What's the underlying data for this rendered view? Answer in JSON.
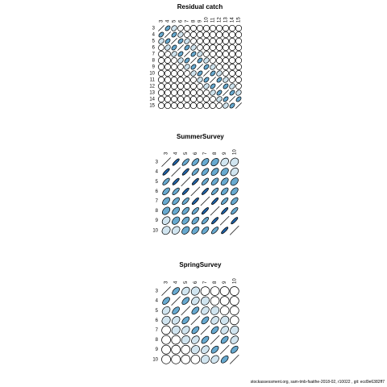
{
  "footer": "stockassessment.org, sam-tmb-fsaithe-2018-02, r10022 , git: ecd9e6382ff7",
  "colors": {
    "strong": "#2166ac",
    "medium": "#67a9cf",
    "light": "#d1e5f0",
    "weak": "#ffffff",
    "border": "#000000"
  },
  "chart_data": [
    {
      "type": "heatmap",
      "title": "Residual catch",
      "ages": [
        "3",
        "4",
        "5",
        "6",
        "7",
        "8",
        "9",
        "10",
        "11",
        "12",
        "13",
        "14",
        "15"
      ],
      "correlation": [
        [
          1.0,
          0.45,
          0.25,
          0.1,
          0.05,
          0.02,
          0.0,
          0.0,
          0.0,
          0.0,
          0.0,
          0.0,
          0.0
        ],
        [
          0.45,
          1.0,
          0.45,
          0.25,
          0.1,
          0.05,
          0.02,
          0.0,
          0.0,
          0.0,
          0.0,
          0.0,
          0.0
        ],
        [
          0.25,
          0.45,
          1.0,
          0.45,
          0.25,
          0.1,
          0.05,
          0.02,
          0.0,
          0.0,
          0.0,
          0.0,
          0.0
        ],
        [
          0.1,
          0.25,
          0.45,
          1.0,
          0.45,
          0.25,
          0.1,
          0.05,
          0.02,
          0.0,
          0.0,
          0.0,
          0.0
        ],
        [
          0.05,
          0.1,
          0.25,
          0.45,
          1.0,
          0.45,
          0.25,
          0.1,
          0.05,
          0.02,
          0.0,
          0.0,
          0.0
        ],
        [
          0.02,
          0.05,
          0.1,
          0.25,
          0.45,
          1.0,
          0.45,
          0.25,
          0.1,
          0.05,
          0.02,
          0.0,
          0.0
        ],
        [
          0.0,
          0.02,
          0.05,
          0.1,
          0.25,
          0.45,
          1.0,
          0.45,
          0.25,
          0.1,
          0.05,
          0.02,
          0.0
        ],
        [
          0.0,
          0.0,
          0.02,
          0.05,
          0.1,
          0.25,
          0.45,
          1.0,
          0.45,
          0.25,
          0.1,
          0.05,
          0.02
        ],
        [
          0.0,
          0.0,
          0.0,
          0.02,
          0.05,
          0.1,
          0.25,
          0.45,
          1.0,
          0.45,
          0.25,
          0.1,
          0.05
        ],
        [
          0.0,
          0.0,
          0.0,
          0.0,
          0.02,
          0.05,
          0.1,
          0.25,
          0.45,
          1.0,
          0.45,
          0.25,
          0.1
        ],
        [
          0.0,
          0.0,
          0.0,
          0.0,
          0.0,
          0.02,
          0.05,
          0.1,
          0.25,
          0.45,
          1.0,
          0.45,
          0.25
        ],
        [
          0.0,
          0.0,
          0.0,
          0.0,
          0.0,
          0.0,
          0.02,
          0.05,
          0.1,
          0.25,
          0.45,
          1.0,
          0.45
        ],
        [
          0.0,
          0.0,
          0.0,
          0.0,
          0.0,
          0.0,
          0.0,
          0.02,
          0.05,
          0.1,
          0.25,
          0.45,
          1.0
        ]
      ]
    },
    {
      "type": "heatmap",
      "title": "SummerSurvey",
      "ages": [
        "3",
        "4",
        "5",
        "6",
        "7",
        "8",
        "9",
        "10"
      ],
      "correlation": [
        [
          1.0,
          0.85,
          0.72,
          0.6,
          0.5,
          0.4,
          0.3,
          0.2
        ],
        [
          0.85,
          1.0,
          0.85,
          0.72,
          0.6,
          0.5,
          0.4,
          0.3
        ],
        [
          0.72,
          0.85,
          1.0,
          0.85,
          0.72,
          0.6,
          0.5,
          0.4
        ],
        [
          0.6,
          0.72,
          0.85,
          1.0,
          0.85,
          0.72,
          0.6,
          0.5
        ],
        [
          0.5,
          0.6,
          0.72,
          0.85,
          1.0,
          0.85,
          0.72,
          0.6
        ],
        [
          0.4,
          0.5,
          0.6,
          0.72,
          0.85,
          1.0,
          0.85,
          0.72
        ],
        [
          0.3,
          0.4,
          0.5,
          0.6,
          0.72,
          0.85,
          1.0,
          0.85
        ],
        [
          0.2,
          0.3,
          0.4,
          0.5,
          0.6,
          0.72,
          0.85,
          1.0
        ]
      ]
    },
    {
      "type": "heatmap",
      "title": "SpringSurvey",
      "ages": [
        "3",
        "4",
        "5",
        "6",
        "7",
        "8",
        "9",
        "10"
      ],
      "correlation": [
        [
          1.0,
          0.55,
          0.3,
          0.15,
          0.05,
          0.02,
          0.0,
          0.0
        ],
        [
          0.55,
          1.0,
          0.55,
          0.3,
          0.15,
          0.05,
          0.02,
          0.0
        ],
        [
          0.3,
          0.55,
          1.0,
          0.55,
          0.3,
          0.15,
          0.05,
          0.02
        ],
        [
          0.15,
          0.3,
          0.55,
          1.0,
          0.55,
          0.3,
          0.15,
          0.05
        ],
        [
          0.05,
          0.15,
          0.3,
          0.55,
          1.0,
          0.55,
          0.3,
          0.15
        ],
        [
          0.02,
          0.05,
          0.15,
          0.3,
          0.55,
          1.0,
          0.55,
          0.3
        ],
        [
          0.0,
          0.02,
          0.05,
          0.15,
          0.3,
          0.55,
          1.0,
          0.55
        ],
        [
          0.0,
          0.0,
          0.02,
          0.05,
          0.15,
          0.3,
          0.55,
          1.0
        ]
      ]
    }
  ]
}
